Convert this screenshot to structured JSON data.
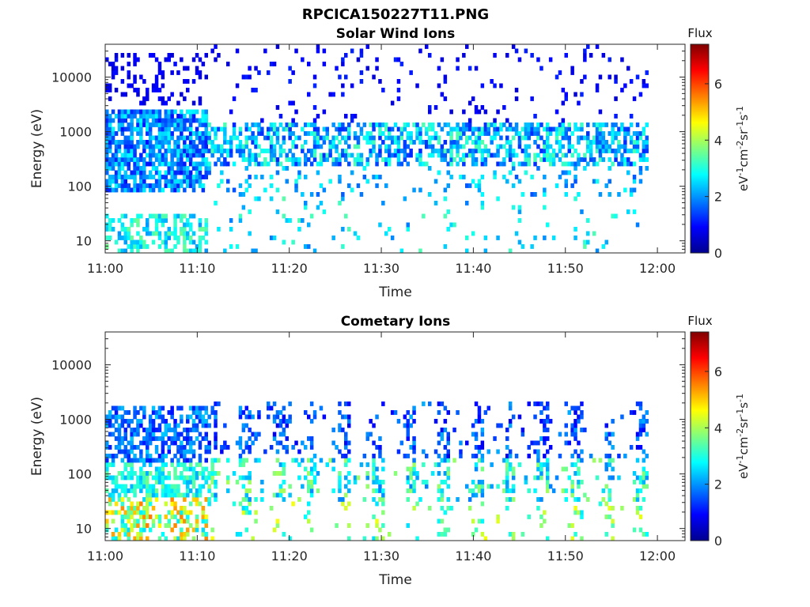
{
  "figure": {
    "title": "RPCICA150227T11.PNG"
  },
  "colorbar": {
    "label": "Flux",
    "unit": "eV-1cm-2sr-1s-1",
    "range": [
      0,
      7.4
    ],
    "ticks": [
      "0",
      "2",
      "4",
      "6"
    ],
    "colormap": "jet"
  },
  "chart_data": [
    {
      "type": "heatmap",
      "title": "Solar Wind Ions",
      "xlabel": "Time",
      "ylabel": "Energy (eV)",
      "x_ticks": [
        "11:00",
        "11:10",
        "11:20",
        "11:30",
        "11:40",
        "11:50",
        "12:00"
      ],
      "xlim": [
        "11:00",
        "12:03"
      ],
      "y_ticks": [
        "10",
        "100",
        "1000",
        "10000"
      ],
      "y_scale": "log",
      "ylim": [
        6,
        40000
      ],
      "time_range": [
        "11:00",
        "11:59"
      ],
      "description_of_values": "flux mostly 1-3.5 concentrated between ~200 and ~1500 eV after 11:15; sparse 1-2 values up to 40000 eV; broad 2-3 coverage 10-3000 eV before 11:11",
      "bands": [
        {
          "t_start": "11:00",
          "t_end": "11:11",
          "e_min": 80,
          "e_max": 2500,
          "flux_min": 1.0,
          "flux_max": 2.8,
          "density": 0.75
        },
        {
          "t_start": "11:00",
          "t_end": "11:11",
          "e_min": 6,
          "e_max": 30,
          "flux_min": 2.0,
          "flux_max": 3.6,
          "density": 0.45
        },
        {
          "t_start": "11:00",
          "t_end": "11:11",
          "e_min": 3000,
          "e_max": 30000,
          "flux_min": 0.6,
          "flux_max": 1.0,
          "density": 0.25
        },
        {
          "t_start": "11:11",
          "t_end": "11:59",
          "e_min": 220,
          "e_max": 1500,
          "flux_min": 1.2,
          "flux_max": 3.4,
          "density": 0.55
        },
        {
          "t_start": "11:11",
          "t_end": "11:59",
          "e_min": 60,
          "e_max": 250,
          "flux_min": 1.5,
          "flux_max": 3.0,
          "density": 0.12
        },
        {
          "t_start": "11:11",
          "t_end": "11:59",
          "e_min": 6,
          "e_max": 60,
          "flux_min": 1.8,
          "flux_max": 3.4,
          "density": 0.05
        },
        {
          "t_start": "11:11",
          "t_end": "11:59",
          "e_min": 1500,
          "e_max": 40000,
          "flux_min": 0.6,
          "flux_max": 1.2,
          "density": 0.06
        }
      ]
    },
    {
      "type": "heatmap",
      "title": "Cometary Ions",
      "xlabel": "Time",
      "ylabel": "Energy (eV)",
      "x_ticks": [
        "11:00",
        "11:10",
        "11:20",
        "11:30",
        "11:40",
        "11:50",
        "12:00"
      ],
      "xlim": [
        "11:00",
        "12:03"
      ],
      "y_ticks": [
        "10",
        "100",
        "1000",
        "10000"
      ],
      "y_scale": "log",
      "ylim": [
        6,
        40000
      ],
      "time_range": [
        "11:00",
        "11:59"
      ],
      "description_of_values": "periodic vertical streaks every ~3-4 min from ~6 eV up to ~2000 eV; highest flux (4.5-5.8) below 40 eV near 11:02-11:07 and 11:53",
      "bands": [
        {
          "t_start": "11:00",
          "t_end": "11:11",
          "e_min": 150,
          "e_max": 1700,
          "flux_min": 1.0,
          "flux_max": 2.4,
          "density": 0.55
        },
        {
          "t_start": "11:00",
          "t_end": "11:11",
          "e_min": 40,
          "e_max": 150,
          "flux_min": 2.2,
          "flux_max": 3.6,
          "density": 0.6
        },
        {
          "t_start": "11:00",
          "t_end": "11:11",
          "e_min": 6,
          "e_max": 40,
          "flux_min": 2.5,
          "flux_max": 5.6,
          "density": 0.5
        },
        {
          "t_start": "11:11",
          "t_end": "11:59",
          "e_min": 200,
          "e_max": 2200,
          "flux_min": 0.8,
          "flux_max": 2.2,
          "density": 0.22
        },
        {
          "t_start": "11:11",
          "t_end": "11:59",
          "e_min": 30,
          "e_max": 200,
          "flux_min": 1.8,
          "flux_max": 4.0,
          "density": 0.3
        },
        {
          "t_start": "11:11",
          "t_end": "11:59",
          "e_min": 6,
          "e_max": 30,
          "flux_min": 2.5,
          "flux_max": 4.6,
          "density": 0.12
        }
      ]
    }
  ]
}
